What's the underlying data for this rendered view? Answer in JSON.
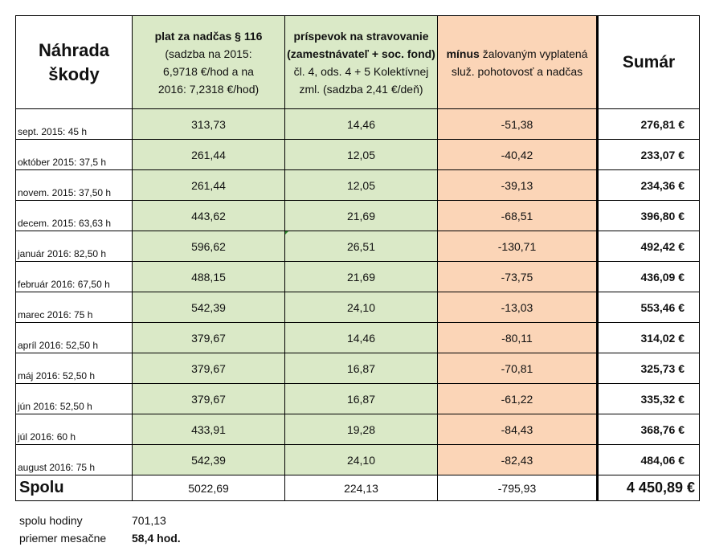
{
  "header": {
    "col_label": [
      "Náhrada",
      "škody"
    ],
    "col_plat": {
      "bold": "plat za nadčas § 116",
      "lines": [
        "(sadzba na 2015:",
        "6,9718 €/hod a na",
        "2016: 7,2318 €/hod)"
      ]
    },
    "col_prisp": {
      "bold_lines": [
        "príspevok na stravovanie",
        "(zamestnávateľ + soc. fond)"
      ],
      "lines": [
        "čl. 4, ods. 4 + 5 Kolektívnej",
        "zml. (sadzba 2,41 €/deň)"
      ]
    },
    "col_minus": {
      "bold": "mínus",
      "rest": "žalovaným vyplatená",
      "line2": "služ. pohotovosť a nadčas"
    },
    "col_sum": "Sumár"
  },
  "rows": [
    {
      "label": "sept. 2015: 45 h",
      "plat": "313,73",
      "prisp": "14,46",
      "minus": "-51,38",
      "sum": "276,81 €"
    },
    {
      "label": "október 2015: 37,5 h",
      "plat": "261,44",
      "prisp": "12,05",
      "minus": "-40,42",
      "sum": "233,07 €"
    },
    {
      "label": "novem. 2015: 37,50 h",
      "plat": "261,44",
      "prisp": "12,05",
      "minus": "-39,13",
      "sum": "234,36 €"
    },
    {
      "label": "decem. 2015: 63,63 h",
      "plat": "443,62",
      "prisp": "21,69",
      "minus": "-68,51",
      "sum": "396,80 €"
    },
    {
      "label": "január 2016: 82,50 h",
      "plat": "596,62",
      "prisp": "26,51",
      "minus": "-130,71",
      "sum": "492,42 €"
    },
    {
      "label": "február 2016: 67,50 h",
      "plat": "488,15",
      "prisp": "21,69",
      "minus": "-73,75",
      "sum": "436,09 €"
    },
    {
      "label": "marec 2016: 75 h",
      "plat": "542,39",
      "prisp": "24,10",
      "minus": "-13,03",
      "sum": "553,46 €"
    },
    {
      "label": "apríl 2016: 52,50 h",
      "plat": "379,67",
      "prisp": "14,46",
      "minus": "-80,11",
      "sum": "314,02 €"
    },
    {
      "label": "máj 2016: 52,50 h",
      "plat": "379,67",
      "prisp": "16,87",
      "minus": "-70,81",
      "sum": "325,73 €"
    },
    {
      "label": "jún 2016: 52,50 h",
      "plat": "379,67",
      "prisp": "16,87",
      "minus": "-61,22",
      "sum": "335,32 €"
    },
    {
      "label": "júl 2016: 60 h",
      "plat": "433,91",
      "prisp": "19,28",
      "minus": "-84,43",
      "sum": "368,76 €"
    },
    {
      "label": "august 2016: 75 h",
      "plat": "542,39",
      "prisp": "24,10",
      "minus": "-82,43",
      "sum": "484,06 €"
    }
  ],
  "total": {
    "label": "Spolu",
    "plat": "5022,69",
    "prisp": "224,13",
    "minus": "-795,93",
    "sum": "4 450,89 €"
  },
  "summary": {
    "hours_label": "spolu hodiny",
    "hours_value": "701,13",
    "avg_label": "priemer mesačne",
    "avg_value": "58,4 hod."
  },
  "colors": {
    "green_fill": "#dae9c7",
    "orange_fill": "#fbd5b7"
  }
}
